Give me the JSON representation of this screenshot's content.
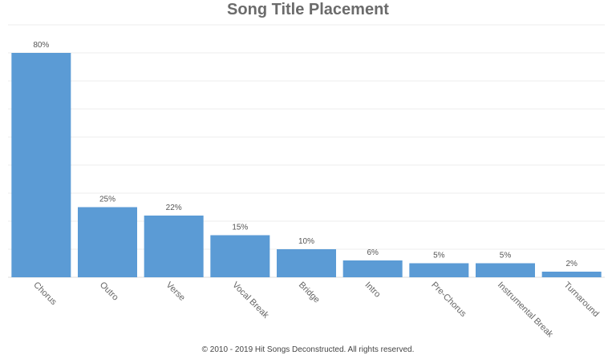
{
  "chart_data": {
    "type": "bar",
    "title": "Song Title Placement",
    "categories": [
      "Chorus",
      "Outro",
      "Verse",
      "Vocal Break",
      "Bridge",
      "Intro",
      "Pre-Chorus",
      "Instrumental Break",
      "Turnaround"
    ],
    "values": [
      80,
      25,
      22,
      15,
      10,
      6,
      5,
      5,
      2
    ],
    "value_labels": [
      "80%",
      "25%",
      "22%",
      "15%",
      "10%",
      "6%",
      "5%",
      "5%",
      "2%"
    ],
    "ylim": [
      0,
      90
    ],
    "grid": true,
    "legend": "none",
    "bar_color": "#5b9bd5"
  },
  "footer": "© 2010 - 2019 Hit Songs Deconstructed. All rights reserved."
}
